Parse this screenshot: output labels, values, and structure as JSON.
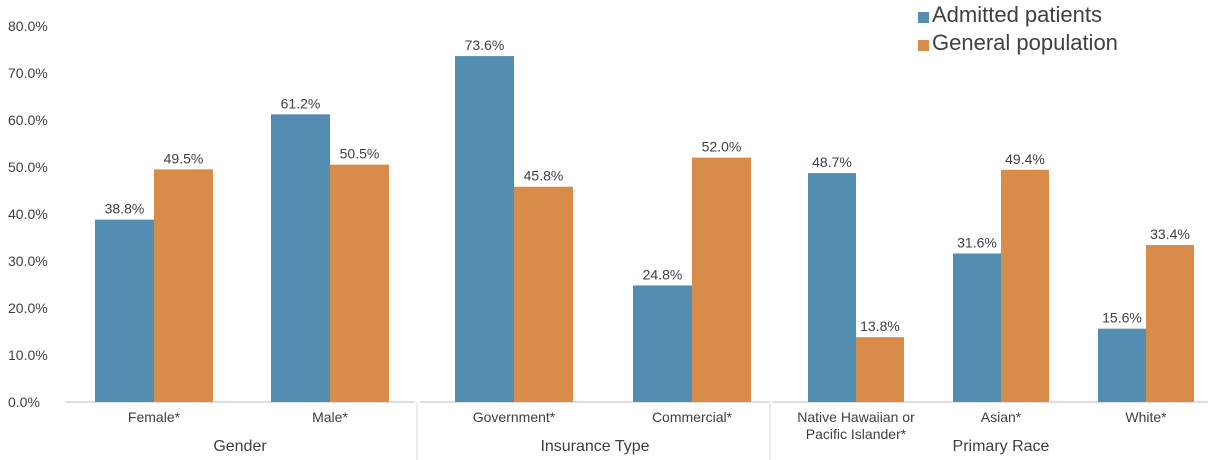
{
  "chart_data": {
    "type": "bar",
    "ylim": [
      0,
      80
    ],
    "yticks": [
      "0.0%",
      "10.0%",
      "20.0%",
      "30.0%",
      "40.0%",
      "50.0%",
      "60.0%",
      "70.0%",
      "80.0%"
    ],
    "grid": false,
    "legend_position": "top-right",
    "series": [
      {
        "name": "Admitted patients",
        "color": "#548DB2"
      },
      {
        "name": "General population",
        "color": "#D98B4A"
      }
    ],
    "groups": [
      {
        "label": "Gender",
        "categories": [
          {
            "label": "Female*",
            "values": [
              38.8,
              49.5
            ],
            "value_labels": [
              "38.8%",
              "49.5%"
            ]
          },
          {
            "label": "Male*",
            "values": [
              61.2,
              50.5
            ],
            "value_labels": [
              "61.2%",
              "50.5%"
            ]
          }
        ]
      },
      {
        "label": "Insurance Type",
        "categories": [
          {
            "label": "Government*",
            "values": [
              73.6,
              45.8
            ],
            "value_labels": [
              "73.6%",
              "45.8%"
            ]
          },
          {
            "label": "Commercial*",
            "values": [
              24.8,
              52.0
            ],
            "value_labels": [
              "24.8%",
              "52.0%"
            ]
          }
        ]
      },
      {
        "label": "Primary Race",
        "categories": [
          {
            "label": "Native Hawaiian or\nPacific Islander*",
            "values": [
              48.7,
              13.8
            ],
            "value_labels": [
              "48.7%",
              "13.8%"
            ]
          },
          {
            "label": "Asian*",
            "values": [
              31.6,
              49.4
            ],
            "value_labels": [
              "31.6%",
              "49.4%"
            ]
          },
          {
            "label": "White*",
            "values": [
              15.6,
              33.4
            ],
            "value_labels": [
              "15.6%",
              "33.4%"
            ]
          }
        ]
      }
    ]
  }
}
